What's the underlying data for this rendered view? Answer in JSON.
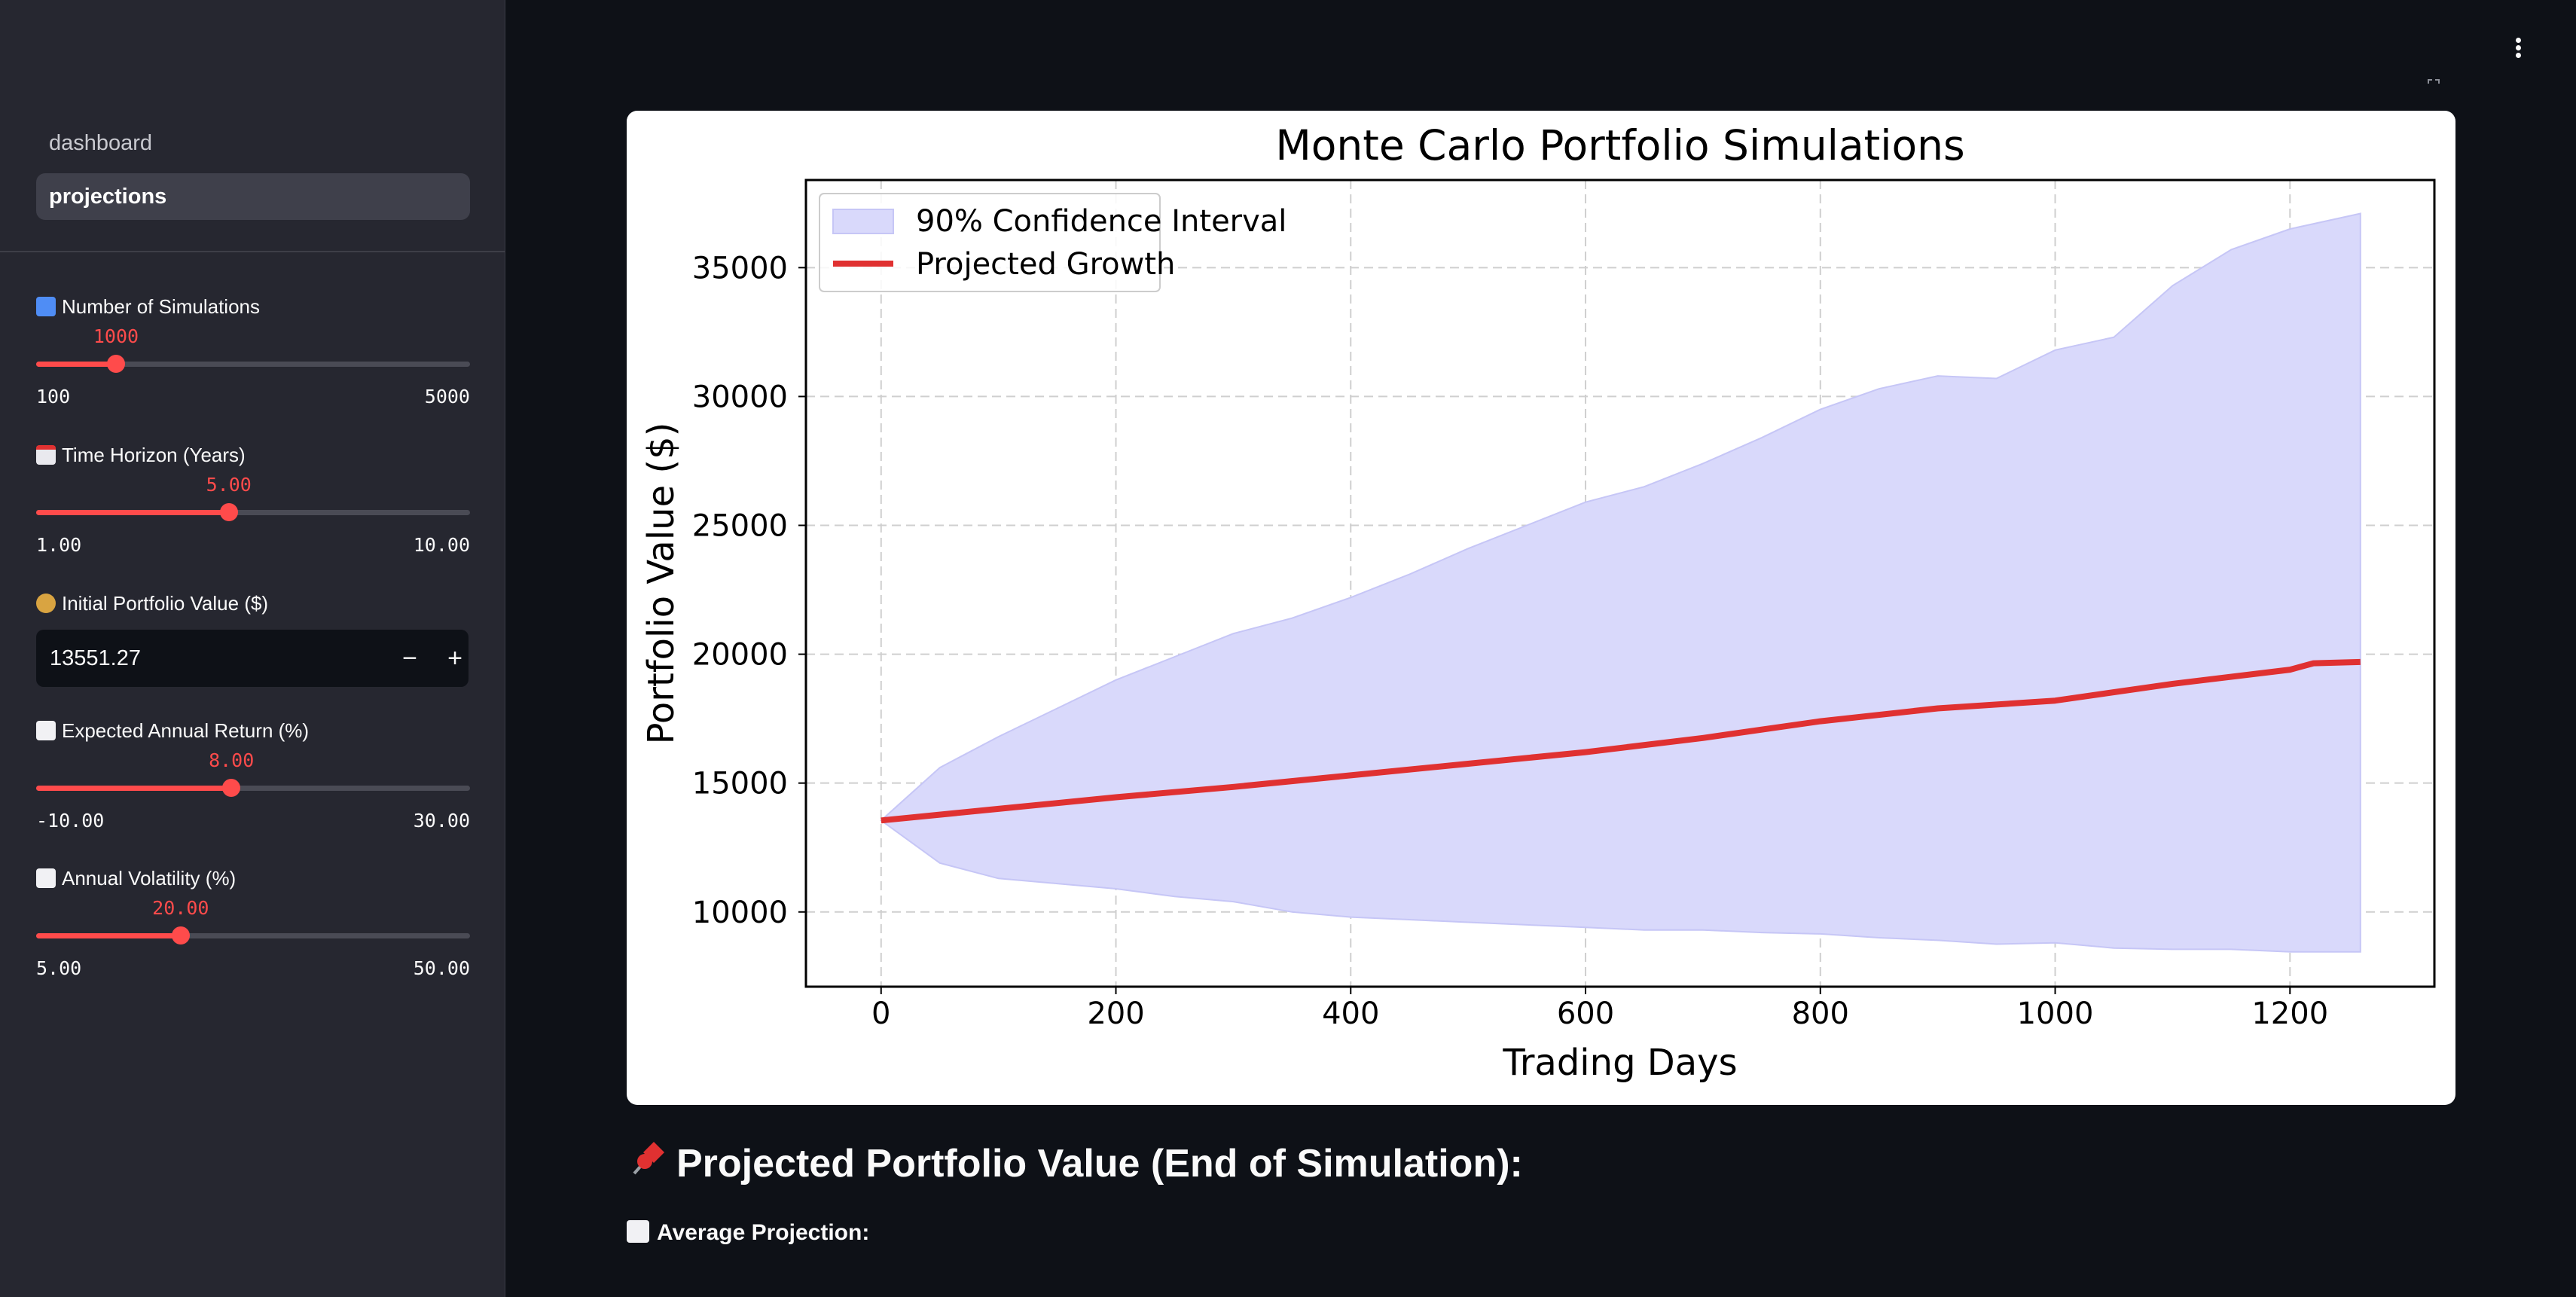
{
  "sidebar": {
    "nav": [
      {
        "label": "dashboard",
        "active": false
      },
      {
        "label": "projections",
        "active": true
      }
    ],
    "controls": {
      "num_simulations": {
        "icon": "input-numbers-icon",
        "label": "Number of Simulations",
        "value": "1000",
        "min": "100",
        "max": "5000",
        "fraction": 0.184
      },
      "time_horizon": {
        "icon": "calendar-icon",
        "label": "Time Horizon (Years)",
        "value": "5.00",
        "min": "1.00",
        "max": "10.00",
        "fraction": 0.444
      },
      "initial_value": {
        "icon": "money-bag-icon",
        "label": "Initial Portfolio Value ($)",
        "value": "13551.27",
        "minus": "−",
        "plus": "+"
      },
      "expected_return": {
        "icon": "chart-increasing-icon",
        "label": "Expected Annual Return (%)",
        "value": "8.00",
        "min": "-10.00",
        "max": "30.00",
        "fraction": 0.45
      },
      "volatility": {
        "icon": "bar-chart-icon",
        "label": "Annual Volatility (%)",
        "value": "20.00",
        "min": "5.00",
        "max": "50.00",
        "fraction": 0.333
      }
    }
  },
  "colors": {
    "accent": "#ff4b4b",
    "band": "#d9d9fb",
    "band_edge": "#c6c6f6",
    "line": "#e03131",
    "background": "#0e1117",
    "sidebar": "#262730"
  },
  "main": {
    "result_heading": "Projected Portfolio Value (End of Simulation):",
    "result_icon": "pushpin-icon",
    "average_label": "Average Projection:",
    "average_icon": "bar-chart-icon"
  },
  "chart_data": {
    "type": "line",
    "title": "Monte Carlo Portfolio Simulations",
    "xlabel": "Trading Days",
    "ylabel": "Portfolio Value ($)",
    "xlim": [
      -64,
      1323
    ],
    "ylim": [
      7100,
      38400
    ],
    "xticks": [
      0,
      200,
      400,
      600,
      800,
      1000,
      1200
    ],
    "yticks": [
      10000,
      15000,
      20000,
      25000,
      30000,
      35000
    ],
    "grid": true,
    "legend_position": "top-left",
    "legend": [
      "90% Confidence Interval",
      "Projected Growth"
    ],
    "band": {
      "name": "90% Confidence Interval",
      "x": [
        0,
        50,
        100,
        150,
        200,
        250,
        300,
        350,
        400,
        450,
        500,
        550,
        600,
        650,
        700,
        750,
        800,
        850,
        900,
        950,
        1000,
        1050,
        1100,
        1150,
        1200,
        1260
      ],
      "upper": [
        13550,
        15600,
        16800,
        17900,
        19000,
        19900,
        20800,
        21400,
        22200,
        23100,
        24100,
        25000,
        25900,
        26500,
        27400,
        28400,
        29500,
        30300,
        30800,
        30700,
        31800,
        32300,
        34300,
        35700,
        36500,
        37100
      ],
      "lower": [
        13550,
        11900,
        11300,
        11100,
        10900,
        10600,
        10400,
        10000,
        9800,
        9700,
        9600,
        9500,
        9400,
        9300,
        9300,
        9200,
        9150,
        9000,
        8900,
        8750,
        8800,
        8600,
        8550,
        8550,
        8450,
        8450
      ]
    },
    "series": [
      {
        "name": "Projected Growth",
        "x": [
          0,
          100,
          200,
          300,
          400,
          500,
          600,
          700,
          800,
          900,
          1000,
          1100,
          1200,
          1220,
          1260
        ],
        "values": [
          13550,
          14000,
          14450,
          14850,
          15300,
          15750,
          16200,
          16750,
          17400,
          17900,
          18200,
          18850,
          19400,
          19650,
          19700
        ]
      }
    ]
  }
}
